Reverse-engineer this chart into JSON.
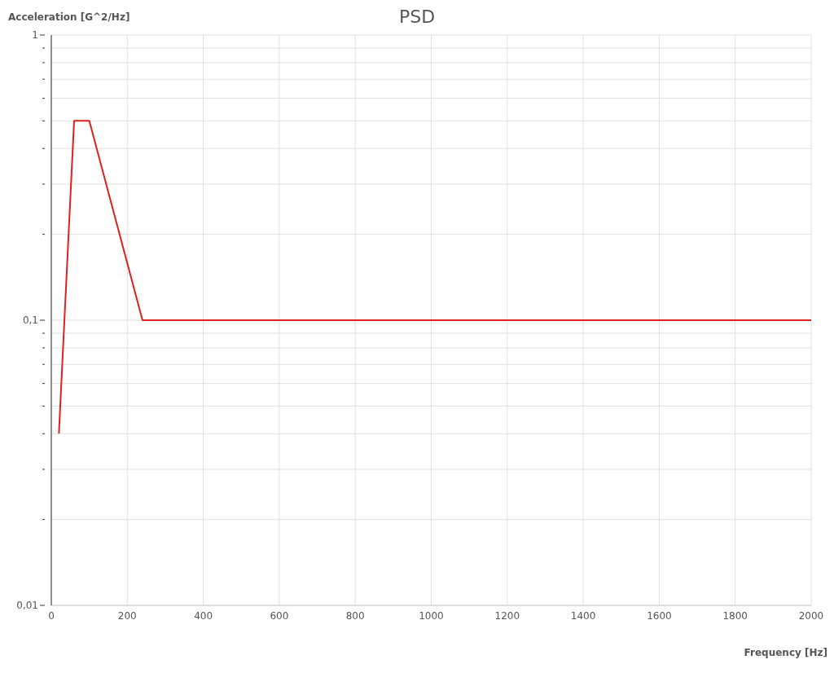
{
  "chart_data": {
    "type": "line",
    "title": "PSD",
    "xlabel": "Frequency [Hz]",
    "ylabel": "Acceleration [G^2/Hz]",
    "x": [
      20,
      60,
      100,
      240,
      2000
    ],
    "series": [
      {
        "color": "#e02020",
        "values": [
          0.04,
          0.5,
          0.5,
          0.1,
          0.1
        ]
      }
    ],
    "xlim": [
      0,
      2000
    ],
    "xticks": [
      0,
      200,
      400,
      600,
      800,
      1000,
      1200,
      1400,
      1600,
      1800,
      2000
    ],
    "ylim": [
      0.01,
      1
    ],
    "log": "y",
    "yticks": [
      {
        "value": 0.01,
        "label": "0,01"
      },
      {
        "value": 0.02,
        "label": null
      },
      {
        "value": 0.03,
        "label": null
      },
      {
        "value": 0.04,
        "label": null
      },
      {
        "value": 0.05,
        "label": null
      },
      {
        "value": 0.06,
        "label": null
      },
      {
        "value": 0.07,
        "label": null
      },
      {
        "value": 0.08,
        "label": null
      },
      {
        "value": 0.09,
        "label": null
      },
      {
        "value": 0.1,
        "label": "0,1"
      },
      {
        "value": 0.2,
        "label": null
      },
      {
        "value": 0.3,
        "label": null
      },
      {
        "value": 0.4,
        "label": null
      },
      {
        "value": 0.5,
        "label": null
      },
      {
        "value": 0.6,
        "label": null
      },
      {
        "value": 0.7,
        "label": null
      },
      {
        "value": 0.8,
        "label": null
      },
      {
        "value": 0.9,
        "label": null
      },
      {
        "value": 1,
        "label": "1"
      }
    ],
    "grid": true,
    "marker": "none",
    "line_style": "solid"
  }
}
